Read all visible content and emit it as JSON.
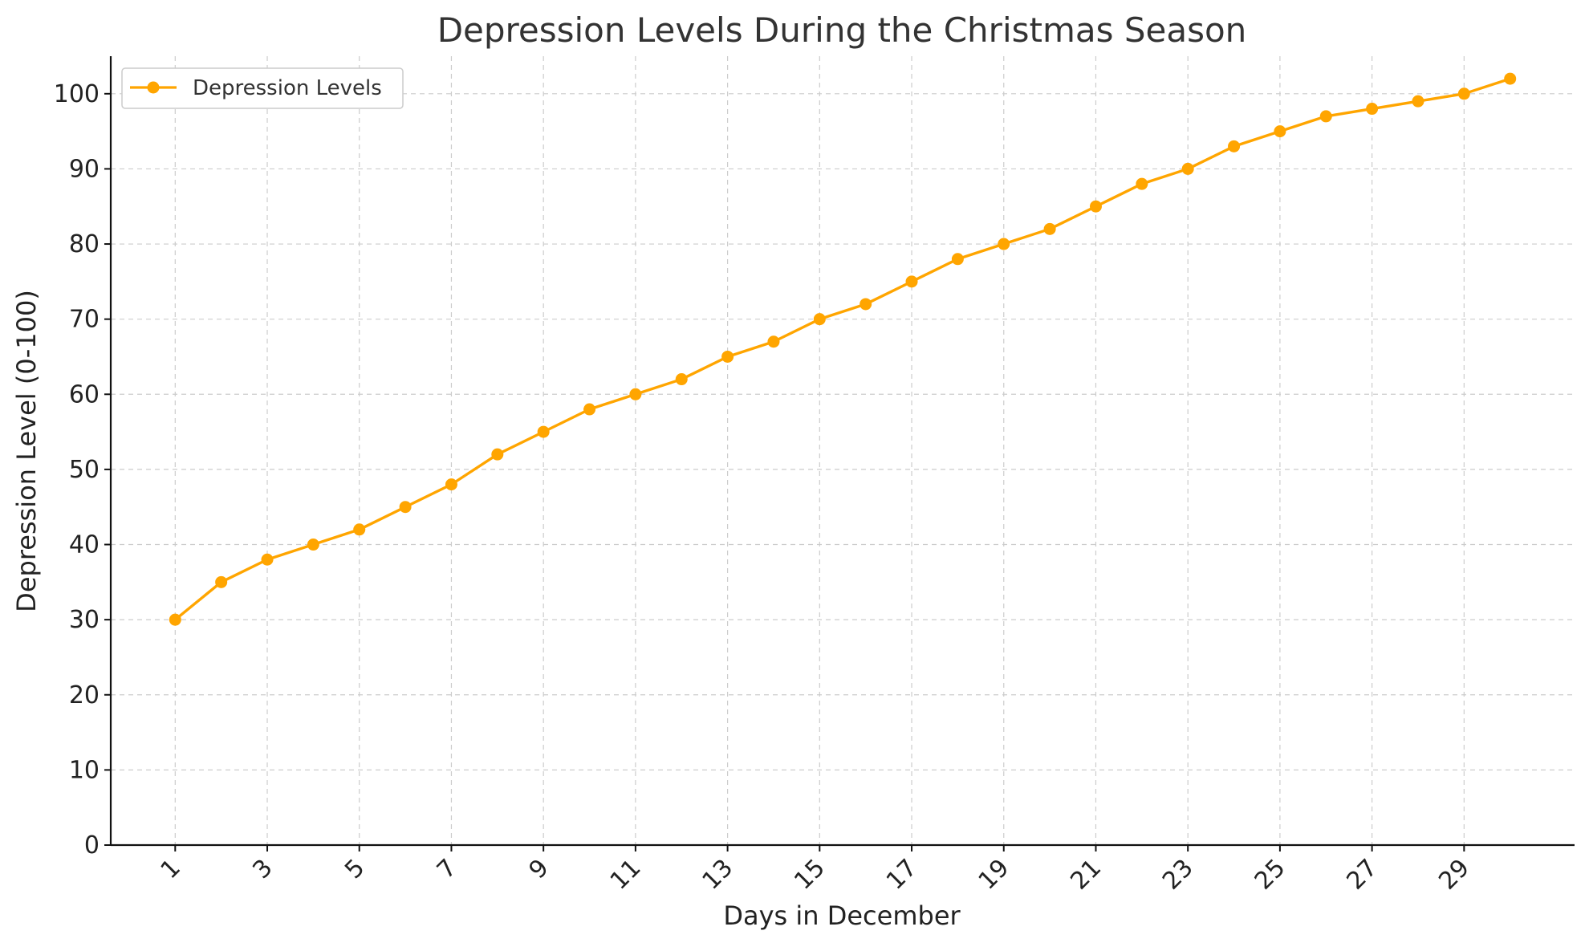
{
  "chart_data": {
    "type": "line",
    "title": "Depression Levels During the Christmas Season",
    "xlabel": "Days in December",
    "ylabel": "Depression Level (0-100)",
    "x": [
      1,
      2,
      3,
      4,
      5,
      6,
      7,
      8,
      9,
      10,
      11,
      12,
      13,
      14,
      15,
      16,
      17,
      18,
      19,
      20,
      21,
      22,
      23,
      24,
      25,
      26,
      27,
      28,
      29,
      30
    ],
    "x_ticks": [
      1,
      3,
      5,
      7,
      9,
      11,
      13,
      15,
      17,
      19,
      21,
      23,
      25,
      27,
      29
    ],
    "x_tick_rotation_deg": 45,
    "y_ticks": [
      0,
      10,
      20,
      30,
      40,
      50,
      60,
      70,
      80,
      90,
      100
    ],
    "xlim": [
      -0.4,
      31.4
    ],
    "ylim": [
      0,
      105
    ],
    "grid": true,
    "legend_position": "top-left",
    "series": [
      {
        "name": "Depression Levels",
        "color": "#FFA500",
        "marker": "circle",
        "values": [
          30,
          35,
          38,
          40,
          42,
          45,
          48,
          52,
          55,
          58,
          60,
          62,
          65,
          67,
          70,
          72,
          75,
          78,
          80,
          82,
          85,
          88,
          90,
          93,
          95,
          97,
          98,
          99,
          100,
          102
        ]
      }
    ]
  }
}
